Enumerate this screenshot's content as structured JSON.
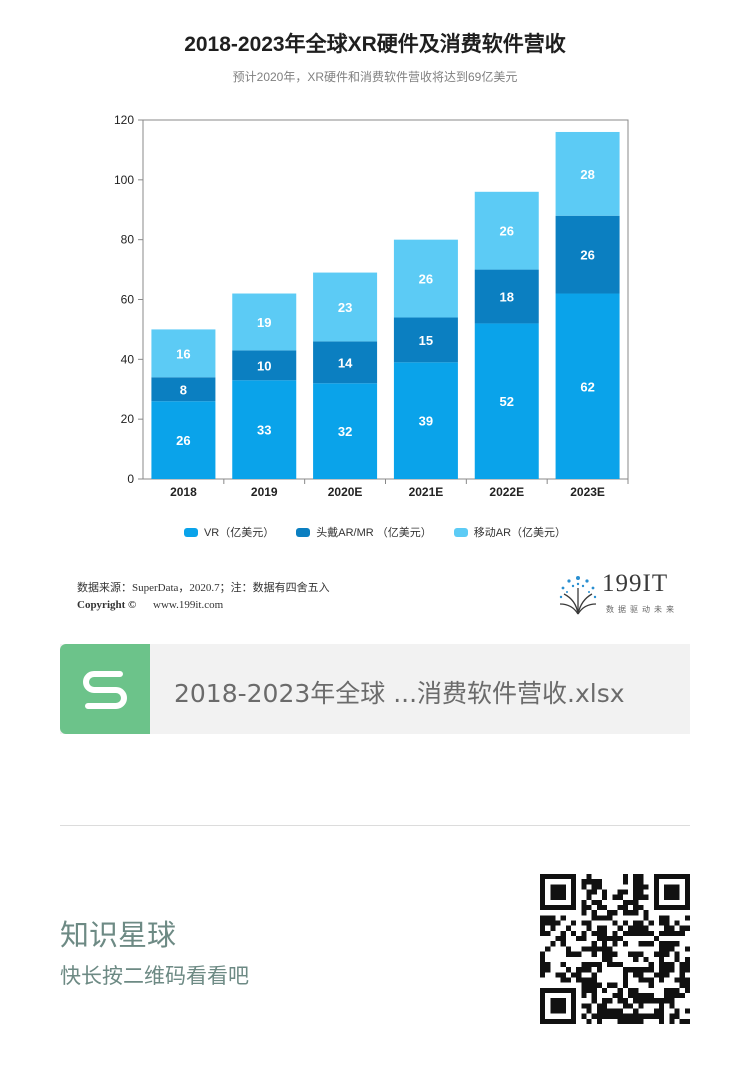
{
  "header": {
    "title": "2018-2023年全球XR硬件及消费软件营收",
    "subtitle": "预计2020年，XR硬件和消费软件营收将达到69亿美元"
  },
  "chart_data": {
    "type": "bar",
    "stacked": true,
    "title": "2018-2023年全球XR硬件及消费软件营收",
    "subtitle": "预计2020年，XR硬件和消费软件营收将达到69亿美元",
    "categories": [
      "2018",
      "2019",
      "2020E",
      "2021E",
      "2022E",
      "2023E"
    ],
    "series": [
      {
        "name": "VR（亿美元）",
        "values": [
          26,
          33,
          32,
          39,
          52,
          62
        ],
        "color": "#0aa3ea"
      },
      {
        "name": "头戴AR/MR （亿美元）",
        "values": [
          8,
          10,
          14,
          15,
          18,
          26
        ],
        "color": "#0b7fc1"
      },
      {
        "name": "移动AR（亿美元）",
        "values": [
          16,
          19,
          23,
          26,
          26,
          28
        ],
        "color": "#5ccbf5"
      }
    ],
    "ylim": [
      0,
      120
    ],
    "yticks": [
      0,
      20,
      40,
      60,
      80,
      100,
      120
    ],
    "xlabel": "",
    "ylabel": "",
    "grid": false,
    "legend_position": "bottom"
  },
  "footer": {
    "source": "数据来源：SuperData，2020.7；注：数据有四舍五入",
    "copyright_label": "Copyright ©",
    "website": "www.199it.com",
    "logo_text": "199IT",
    "logo_sub": "数据驱动未来"
  },
  "file_card": {
    "file_name": "2018-2023年全球 ...消费软件营收.xlsx",
    "icon": "spreadsheet-s-icon",
    "icon_color": "#6cc38a"
  },
  "planet": {
    "title": "知识星球",
    "subtitle": "快长按二维码看看吧",
    "qr_icon": "qr-code-icon"
  }
}
